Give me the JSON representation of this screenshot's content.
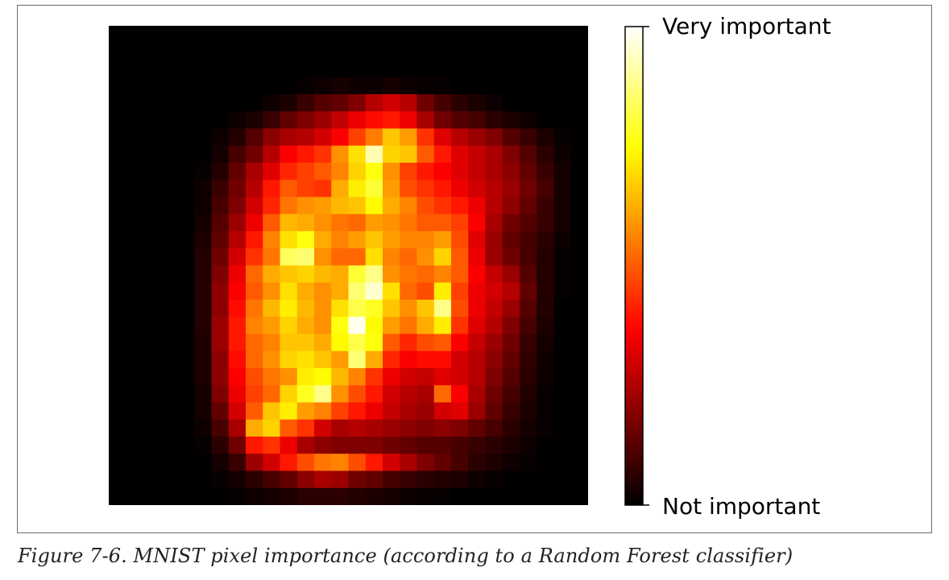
{
  "caption": "Figure 7-6. MNIST pixel importance (according to a Random Forest classifier)",
  "chart_data": {
    "type": "heatmap",
    "title": "",
    "colormap": "hot",
    "colors": [
      "#000000",
      "#ff0000",
      "#ffff00",
      "#ffffff"
    ],
    "grid": false,
    "legend": "colorbar-right",
    "colorbar": {
      "max_label": "Very important",
      "min_label": "Not important"
    },
    "rows": 28,
    "cols": 28,
    "values": [
      [
        0,
        0,
        0,
        0,
        0,
        0,
        0,
        0,
        0,
        0,
        0,
        0,
        0,
        0,
        0,
        0,
        0,
        0,
        0,
        0,
        0,
        0,
        0,
        0,
        0,
        0,
        0,
        0
      ],
      [
        0,
        0,
        0,
        0,
        0,
        0,
        0,
        0,
        0,
        0,
        0,
        0,
        0,
        0,
        0,
        0,
        0,
        0,
        0,
        0,
        0,
        0,
        0,
        0,
        0,
        0,
        0,
        0
      ],
      [
        0,
        0,
        0,
        0,
        0,
        0,
        0,
        0,
        0,
        0,
        0,
        0,
        0,
        0,
        0,
        0,
        0,
        0,
        0,
        0,
        0,
        0,
        0,
        0,
        0,
        0,
        0,
        0
      ],
      [
        0,
        0,
        0,
        0,
        0,
        0,
        0,
        0,
        0,
        0,
        0,
        0.01,
        0.02,
        0.03,
        0.02,
        0.02,
        0.03,
        0.02,
        0.01,
        0.01,
        0,
        0,
        0,
        0,
        0,
        0,
        0,
        0
      ],
      [
        0,
        0,
        0,
        0,
        0,
        0,
        0,
        0,
        0,
        0.02,
        0.04,
        0.08,
        0.12,
        0.14,
        0.18,
        0.26,
        0.3,
        0.26,
        0.16,
        0.1,
        0.06,
        0.04,
        0.02,
        0,
        0,
        0,
        0,
        0
      ],
      [
        0,
        0,
        0,
        0,
        0,
        0,
        0,
        0.02,
        0.04,
        0.08,
        0.14,
        0.18,
        0.22,
        0.28,
        0.34,
        0.38,
        0.4,
        0.34,
        0.24,
        0.16,
        0.12,
        0.1,
        0.06,
        0.04,
        0.02,
        0,
        0,
        0
      ],
      [
        0,
        0,
        0,
        0,
        0,
        0,
        0.02,
        0.05,
        0.12,
        0.2,
        0.24,
        0.26,
        0.3,
        0.36,
        0.46,
        0.55,
        0.66,
        0.6,
        0.44,
        0.32,
        0.26,
        0.22,
        0.18,
        0.12,
        0.08,
        0.04,
        0.01,
        0
      ],
      [
        0,
        0,
        0,
        0,
        0,
        0,
        0.03,
        0.1,
        0.16,
        0.26,
        0.36,
        0.4,
        0.44,
        0.58,
        0.7,
        0.92,
        0.68,
        0.66,
        0.5,
        0.4,
        0.32,
        0.28,
        0.24,
        0.18,
        0.12,
        0.06,
        0.02,
        0
      ],
      [
        0,
        0,
        0,
        0,
        0,
        0.01,
        0.05,
        0.14,
        0.24,
        0.32,
        0.42,
        0.46,
        0.5,
        0.56,
        0.68,
        0.76,
        0.58,
        0.46,
        0.4,
        0.36,
        0.32,
        0.28,
        0.24,
        0.2,
        0.14,
        0.08,
        0.03,
        0
      ],
      [
        0,
        0,
        0,
        0,
        0,
        0.02,
        0.08,
        0.16,
        0.26,
        0.4,
        0.5,
        0.46,
        0.44,
        0.62,
        0.72,
        0.8,
        0.6,
        0.48,
        0.44,
        0.4,
        0.34,
        0.3,
        0.26,
        0.22,
        0.16,
        0.1,
        0.03,
        0
      ],
      [
        0,
        0,
        0,
        0,
        0,
        0.02,
        0.1,
        0.18,
        0.3,
        0.42,
        0.54,
        0.58,
        0.6,
        0.64,
        0.66,
        0.74,
        0.62,
        0.56,
        0.48,
        0.44,
        0.4,
        0.34,
        0.26,
        0.2,
        0.14,
        0.08,
        0.03,
        0
      ],
      [
        0,
        0,
        0,
        0,
        0,
        0.03,
        0.12,
        0.22,
        0.34,
        0.5,
        0.64,
        0.62,
        0.58,
        0.54,
        0.52,
        0.6,
        0.58,
        0.54,
        0.5,
        0.5,
        0.46,
        0.36,
        0.24,
        0.16,
        0.12,
        0.08,
        0.03,
        0
      ],
      [
        0,
        0,
        0,
        0,
        0,
        0.04,
        0.14,
        0.26,
        0.4,
        0.56,
        0.7,
        0.76,
        0.62,
        0.56,
        0.6,
        0.66,
        0.6,
        0.56,
        0.56,
        0.6,
        0.48,
        0.32,
        0.22,
        0.14,
        0.1,
        0.06,
        0.02,
        0
      ],
      [
        0,
        0,
        0,
        0,
        0,
        0.05,
        0.16,
        0.3,
        0.44,
        0.54,
        0.84,
        0.86,
        0.58,
        0.52,
        0.52,
        0.7,
        0.56,
        0.52,
        0.58,
        0.68,
        0.5,
        0.34,
        0.22,
        0.16,
        0.1,
        0.05,
        0.01,
        0
      ],
      [
        0,
        0,
        0,
        0,
        0,
        0.05,
        0.18,
        0.34,
        0.52,
        0.62,
        0.66,
        0.68,
        0.64,
        0.62,
        0.8,
        0.88,
        0.58,
        0.54,
        0.52,
        0.56,
        0.5,
        0.36,
        0.28,
        0.22,
        0.12,
        0.05,
        0.01,
        0
      ],
      [
        0,
        0,
        0,
        0,
        0,
        0.05,
        0.2,
        0.36,
        0.5,
        0.58,
        0.7,
        0.62,
        0.58,
        0.62,
        0.86,
        0.95,
        0.7,
        0.52,
        0.48,
        0.72,
        0.46,
        0.34,
        0.3,
        0.26,
        0.14,
        0.05,
        0.01,
        0
      ],
      [
        0,
        0,
        0,
        0,
        0,
        0.05,
        0.2,
        0.38,
        0.54,
        0.64,
        0.72,
        0.64,
        0.58,
        0.7,
        0.82,
        0.78,
        0.66,
        0.58,
        0.66,
        0.88,
        0.48,
        0.34,
        0.28,
        0.22,
        0.12,
        0.05,
        0,
        0
      ],
      [
        0,
        0,
        0,
        0,
        0,
        0.05,
        0.22,
        0.4,
        0.56,
        0.6,
        0.68,
        0.62,
        0.58,
        0.76,
        0.98,
        0.74,
        0.6,
        0.54,
        0.62,
        0.72,
        0.44,
        0.32,
        0.26,
        0.18,
        0.1,
        0.04,
        0,
        0
      ],
      [
        0,
        0,
        0,
        0,
        0,
        0.04,
        0.22,
        0.4,
        0.52,
        0.56,
        0.66,
        0.66,
        0.62,
        0.74,
        0.82,
        0.76,
        0.5,
        0.42,
        0.48,
        0.5,
        0.36,
        0.28,
        0.22,
        0.16,
        0.08,
        0.03,
        0,
        0
      ],
      [
        0,
        0,
        0,
        0,
        0,
        0.04,
        0.2,
        0.38,
        0.52,
        0.58,
        0.68,
        0.7,
        0.66,
        0.6,
        0.86,
        0.62,
        0.42,
        0.36,
        0.38,
        0.38,
        0.3,
        0.26,
        0.2,
        0.14,
        0.07,
        0.02,
        0,
        0
      ],
      [
        0,
        0,
        0,
        0,
        0,
        0.04,
        0.2,
        0.36,
        0.48,
        0.54,
        0.58,
        0.72,
        0.74,
        0.64,
        0.56,
        0.44,
        0.34,
        0.3,
        0.28,
        0.32,
        0.3,
        0.26,
        0.18,
        0.12,
        0.06,
        0.02,
        0,
        0
      ],
      [
        0,
        0,
        0,
        0,
        0,
        0.03,
        0.18,
        0.34,
        0.46,
        0.52,
        0.68,
        0.78,
        0.88,
        0.58,
        0.48,
        0.4,
        0.3,
        0.26,
        0.24,
        0.52,
        0.36,
        0.24,
        0.16,
        0.1,
        0.05,
        0.01,
        0,
        0
      ],
      [
        0,
        0,
        0,
        0,
        0,
        0.03,
        0.14,
        0.3,
        0.5,
        0.66,
        0.72,
        0.6,
        0.56,
        0.46,
        0.4,
        0.34,
        0.28,
        0.24,
        0.22,
        0.3,
        0.32,
        0.22,
        0.14,
        0.08,
        0.04,
        0.01,
        0,
        0
      ],
      [
        0,
        0,
        0,
        0,
        0,
        0.02,
        0.1,
        0.24,
        0.62,
        0.68,
        0.5,
        0.44,
        0.3,
        0.24,
        0.26,
        0.24,
        0.22,
        0.2,
        0.18,
        0.2,
        0.18,
        0.14,
        0.1,
        0.06,
        0.03,
        0.01,
        0,
        0
      ],
      [
        0,
        0,
        0,
        0,
        0,
        0.01,
        0.06,
        0.16,
        0.4,
        0.44,
        0.34,
        0.24,
        0.2,
        0.18,
        0.18,
        0.18,
        0.16,
        0.14,
        0.12,
        0.12,
        0.1,
        0.08,
        0.06,
        0.04,
        0.02,
        0,
        0,
        0
      ],
      [
        0,
        0,
        0,
        0,
        0,
        0,
        0.03,
        0.08,
        0.22,
        0.3,
        0.4,
        0.48,
        0.54,
        0.56,
        0.48,
        0.4,
        0.3,
        0.24,
        0.18,
        0.14,
        0.1,
        0.06,
        0.04,
        0.02,
        0.01,
        0,
        0,
        0
      ],
      [
        0,
        0,
        0,
        0,
        0,
        0,
        0.01,
        0.03,
        0.06,
        0.1,
        0.14,
        0.2,
        0.24,
        0.22,
        0.16,
        0.14,
        0.1,
        0.08,
        0.06,
        0.05,
        0.04,
        0.02,
        0.01,
        0,
        0,
        0,
        0,
        0
      ],
      [
        0,
        0,
        0,
        0,
        0,
        0,
        0,
        0.01,
        0.02,
        0.03,
        0.04,
        0.06,
        0.06,
        0.06,
        0.05,
        0.04,
        0.03,
        0.02,
        0.01,
        0.01,
        0,
        0,
        0,
        0,
        0,
        0,
        0,
        0
      ]
    ]
  }
}
